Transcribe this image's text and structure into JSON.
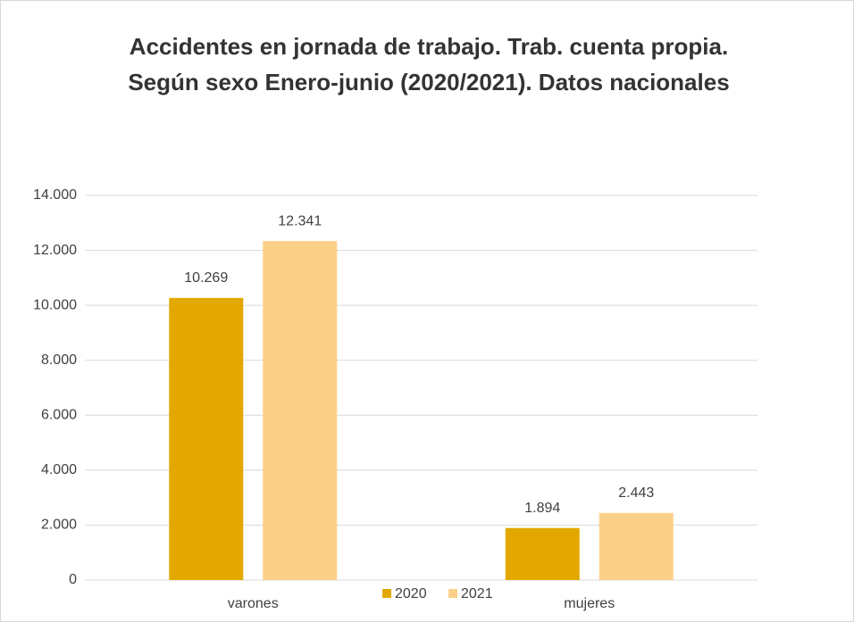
{
  "chart_data": {
    "type": "bar",
    "title": "Accidentes en jornada de trabajo. Trab. cuenta propia. Según sexo Enero-junio (2020/2021). Datos nacionales",
    "categories": [
      "varones",
      "mujeres"
    ],
    "series": [
      {
        "name": "2020",
        "color": "#e2a800",
        "values": [
          10269,
          1894
        ],
        "value_labels": [
          "10.269",
          "1.894"
        ]
      },
      {
        "name": "2021",
        "color": "#fdd088",
        "values": [
          12341,
          2443
        ],
        "value_labels": [
          "12.341",
          "2.443"
        ]
      }
    ],
    "ylim": [
      0,
      14000
    ],
    "yticks": [
      0,
      {
        "value": 2000,
        "label": "2.000"
      },
      {
        "value": 4000,
        "label": "4.000"
      },
      {
        "value": 6000,
        "label": "6.000"
      },
      {
        "value": 8000,
        "label": "8.000"
      },
      {
        "value": 10000,
        "label": "10.000"
      },
      {
        "value": 12000,
        "label": "12.000"
      },
      {
        "value": 14000,
        "label": "14.000"
      }
    ],
    "grid": true,
    "legend": "bottom"
  }
}
